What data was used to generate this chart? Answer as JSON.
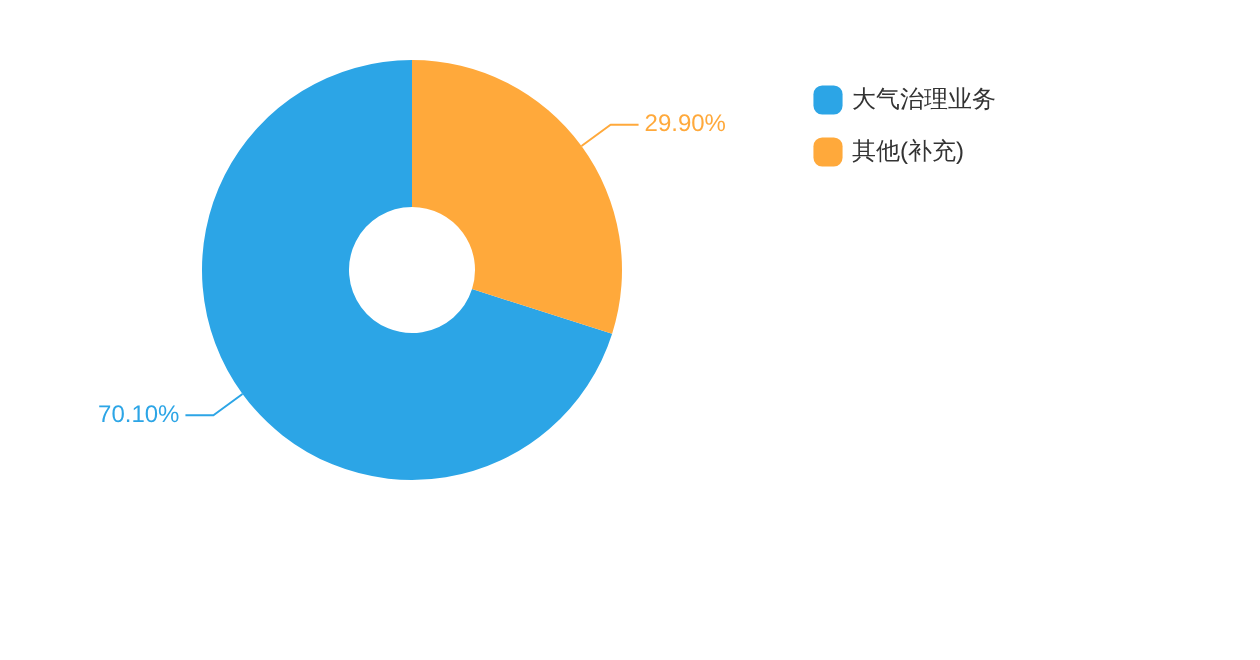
{
  "chart_data": {
    "type": "donut",
    "categories": [
      "大气治理业务",
      "其他(补充)"
    ],
    "values": [
      70.1,
      29.9
    ],
    "colors": [
      "#2ca5e6",
      "#ffa93b"
    ],
    "value_labels": [
      "70.10%",
      "29.90%"
    ],
    "legend": "top right"
  }
}
